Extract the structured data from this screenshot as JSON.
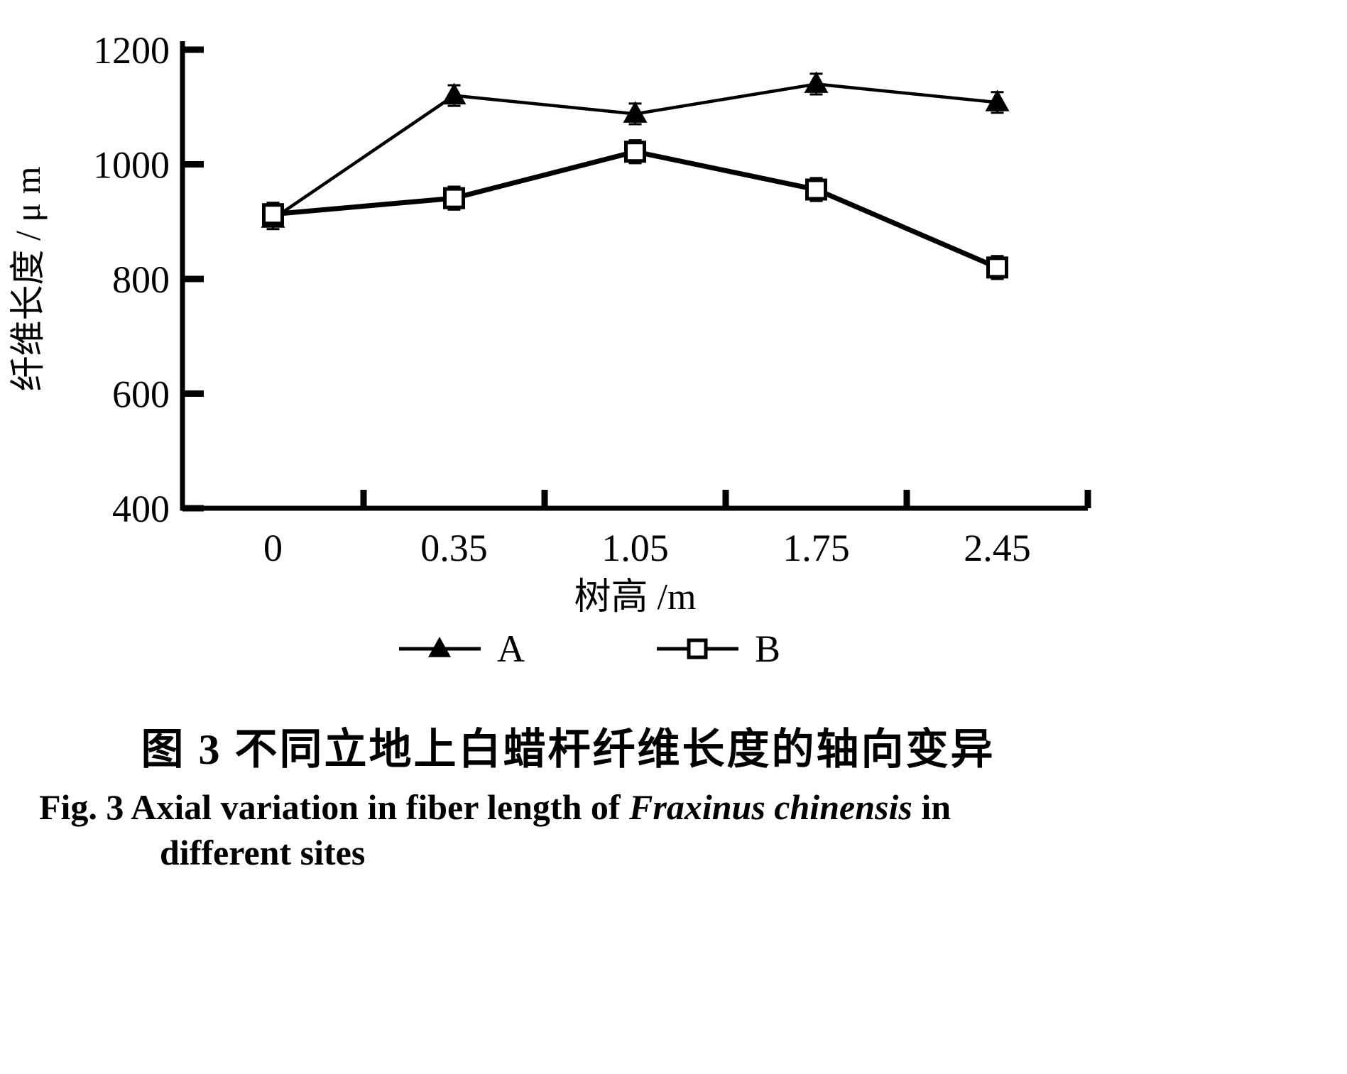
{
  "figure": {
    "caption_cn": "图 3  不同立地上白蜡杆纤维长度的轴向变异",
    "caption_en_prefix": "Fig. 3  Axial variation in fiber length of ",
    "caption_en_species": "Fraxinus chinensis",
    "caption_en_suffix": " in",
    "caption_en_line2": "different sites"
  },
  "chart_data": {
    "type": "line",
    "title": "",
    "xlabel": "树高 /m",
    "ylabel": "纤维长度 / μ m",
    "categories": [
      "0",
      "0.35",
      "1.05",
      "1.75",
      "2.45"
    ],
    "ylim": [
      400,
      1200
    ],
    "yticks": [
      400,
      600,
      800,
      1000,
      1200
    ],
    "grid": false,
    "legend_position": "bottom",
    "series": [
      {
        "name": "A",
        "marker": "triangle-filled",
        "color": "#000000",
        "error": 18,
        "values": [
          905,
          1120,
          1088,
          1140,
          1108
        ]
      },
      {
        "name": "B",
        "marker": "square-open",
        "color": "#000000",
        "error": 20,
        "values": [
          913,
          941,
          1022,
          956,
          820
        ]
      }
    ]
  },
  "colors": {
    "foreground": "#000000",
    "background": "#ffffff"
  }
}
